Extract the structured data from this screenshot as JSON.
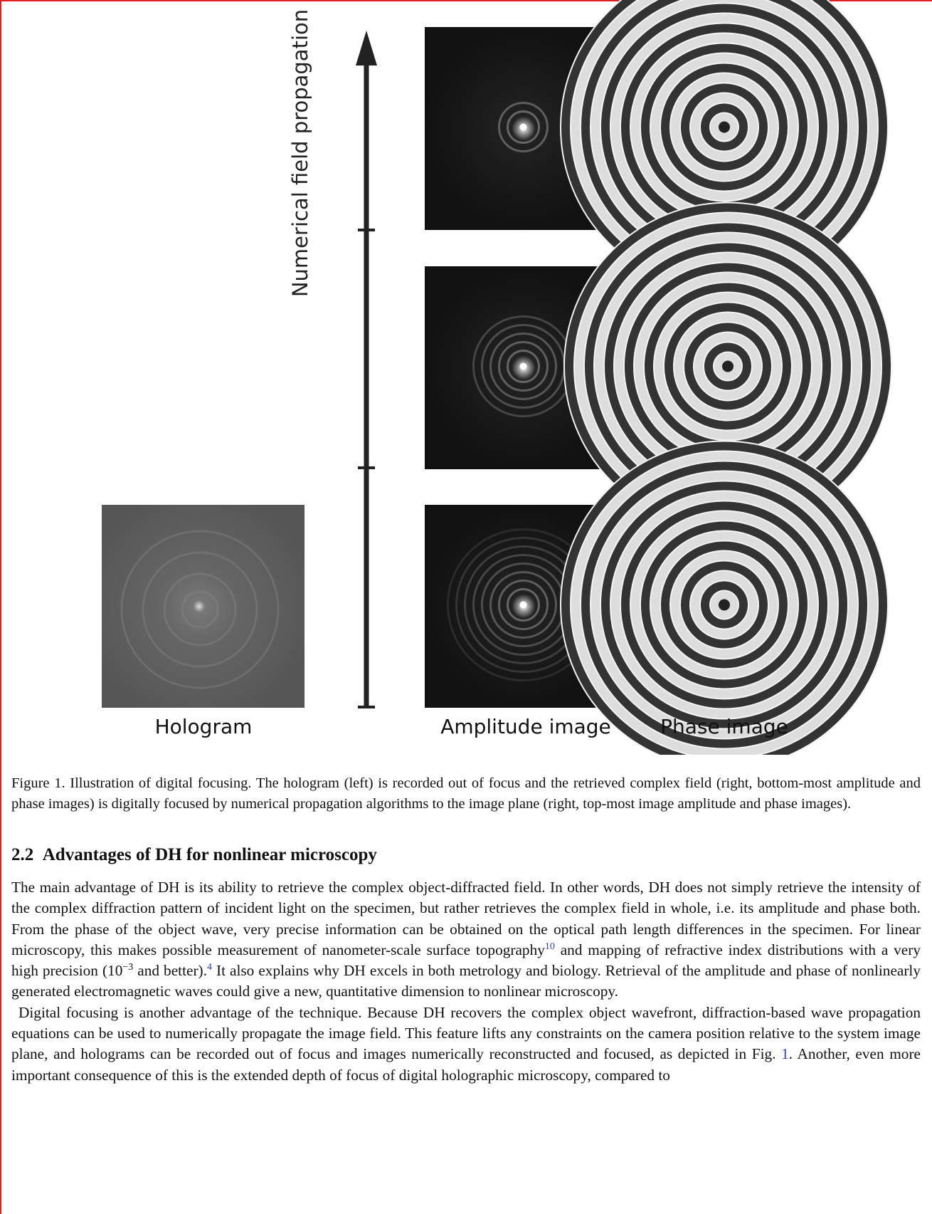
{
  "figure": {
    "axis_label": "Numerical field propagation",
    "labels": [
      "Hologram",
      "Amplitude image",
      "Phase image"
    ],
    "caption": "Figure 1. Illustration of digital focusing.  The hologram (left) is recorded out of focus and the retrieved complex field (right, bottom-most amplitude and phase images) is digitally focused by numerical propagation algorithms to the image plane (right, top-most image amplitude and phase images)."
  },
  "section": {
    "number": "2.2",
    "title": "Advantages of DH for nonlinear microscopy"
  },
  "paragraphs": [
    [
      {
        "text": "The main advantage of DH is its ability to retrieve the complex object-diffracted field.  In other words, DH does not simply retrieve the intensity of the complex diffraction pattern of incident light on the specimen, but rather retrieves the complex field in whole, i.e.  its amplitude and phase both.  From the phase of the object wave, very precise information can be obtained on the optical path length differences in the specimen.  For linear microscopy, this makes possible measurement of nanometer-scale surface topography"
      },
      {
        "sup": "10"
      },
      {
        "text": " and mapping of refractive index distributions with a very high precision (10"
      },
      {
        "sup": "−3"
      },
      {
        "text": " and better)."
      },
      {
        "sup": "4"
      },
      {
        "text": "  It also explains why DH excels in both metrology and biology. Retrieval of the amplitude and phase of nonlinearly generated electromagnetic waves could give a new, quantitative dimension to nonlinear microscopy."
      }
    ],
    [
      {
        "text": "Digital focusing is another advantage of the technique.  Because DH recovers the complex object wavefront, diffraction-based wave propagation equations can be used to numerically propagate the image field.  This feature lifts any constraints on the camera position relative to the system image plane, and holograms can be recorded out of focus and images numerically reconstructed and focused, as depicted in Fig. "
      },
      {
        "ref": "1"
      },
      {
        "text": ".  Another, even more important consequence of this is the extended depth of focus of digital holographic microscopy, compared to"
      }
    ]
  ]
}
